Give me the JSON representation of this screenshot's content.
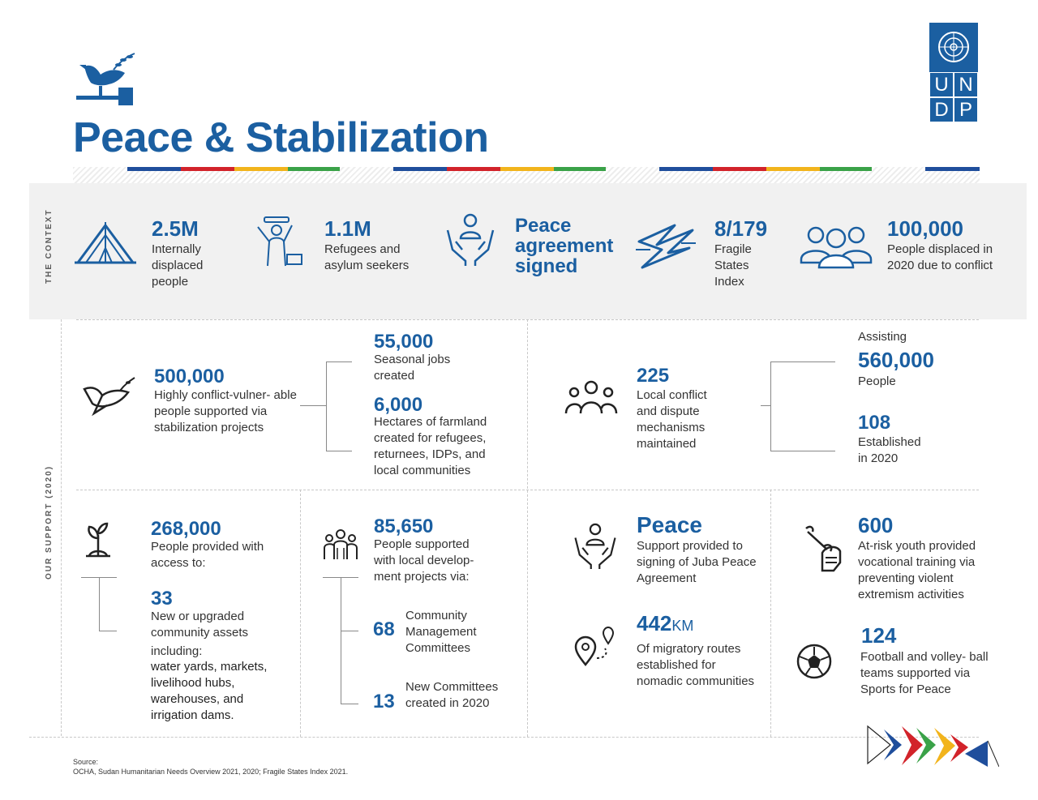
{
  "header": {
    "title": "Peace & Stabilization",
    "logo_letters": [
      "U",
      "N",
      "D",
      "P"
    ]
  },
  "colors": {
    "navy": "#1b5fa1",
    "blue": "#1f4e9c",
    "red": "#d2232a",
    "yellow": "#f2b41c",
    "green": "#3aa248"
  },
  "context": {
    "label": "THE CONTEXT",
    "items": [
      {
        "value": "2.5M",
        "text": "Internally displaced people",
        "icon": "tent-icon"
      },
      {
        "value": "1.1M",
        "text": "Refugees and asylum seekers",
        "icon": "refugee-icon"
      },
      {
        "value": "Peace agreement signed",
        "text": "",
        "icon": "hands-person-icon"
      },
      {
        "value": "8/179",
        "text": "Fragile States Index",
        "icon": "fragility-icon"
      },
      {
        "value": "100,000",
        "text": "People displaced in 2020 due to conflict",
        "icon": "people-group-icon"
      }
    ]
  },
  "support": {
    "label": "OUR SUPPORT (2020)",
    "stabilization": {
      "value": "500,000",
      "text": "Highly conflict-vulner- able people supported via stabilization projects",
      "sub": [
        {
          "value": "55,000",
          "text": "Seasonal jobs created"
        },
        {
          "value": "6,000",
          "text": "Hectares of farmland created for refugees, returnees, IDPs, and local communities"
        }
      ]
    },
    "mechanisms": {
      "value": "225",
      "text": "Local conflict and dispute mechanisms maintained",
      "sub": [
        {
          "prefix": "Assisting",
          "value": "560,000",
          "text": "People"
        },
        {
          "value": "108",
          "text": "Established in 2020"
        }
      ]
    },
    "assets": {
      "value": "268,000",
      "text": "People provided with access to:",
      "sub_value": "33",
      "sub_text": "New or upgraded community assets",
      "including": "including:",
      "list": "water yards, markets, livelihood hubs, warehouses, and irrigation dams."
    },
    "development": {
      "value": "85,650",
      "text": "People supported with local develop- ment projects via:",
      "sub": [
        {
          "value": "68",
          "text": "Community Management Committees"
        },
        {
          "value": "13",
          "text": "New Committees created in 2020"
        }
      ]
    },
    "juba": {
      "value": "Peace",
      "text": "Support provided to signing of Juba Peace Agreement"
    },
    "routes": {
      "value": "442",
      "unit": "KM",
      "text": "Of migratory routes established for nomadic communities"
    },
    "youth": {
      "value": "600",
      "text": "At-risk youth provided vocational training via preventing violent extremism activities"
    },
    "sports": {
      "value": "124",
      "text": "Football and volley- ball teams supported via Sports for Peace"
    }
  },
  "source": {
    "label": "Source:",
    "text": "OCHA, Sudan Humanitarian Needs Overview 2021, 2020;  Fragile States Index 2021."
  }
}
